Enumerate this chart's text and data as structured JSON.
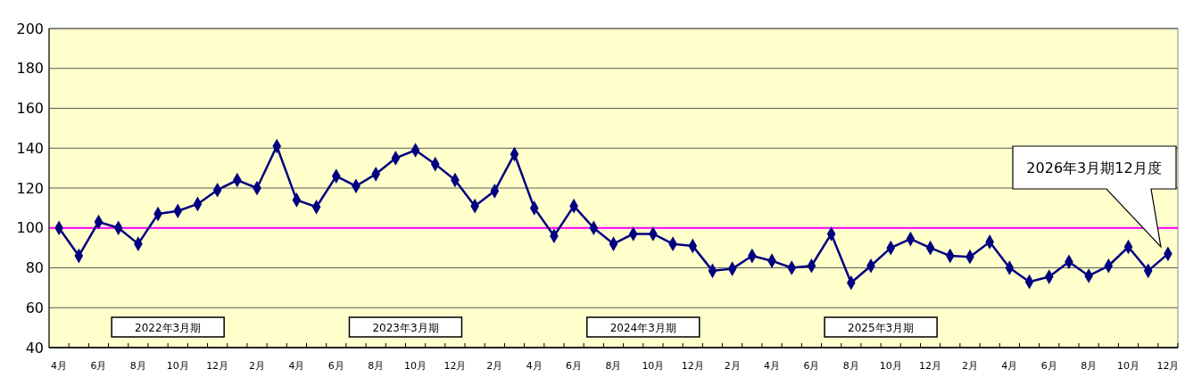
{
  "chart_data": {
    "type": "line",
    "categories": [
      "4月",
      null,
      "6月",
      null,
      "8月",
      null,
      "10月",
      null,
      "12月",
      null,
      "2月",
      null,
      "4月",
      null,
      "6月",
      null,
      "8月",
      null,
      "10月",
      null,
      "12月",
      null,
      "2月",
      null,
      "4月",
      null,
      "6月",
      null,
      "8月",
      null,
      "10月",
      null,
      "12月",
      null,
      "2月",
      null,
      "4月",
      null,
      "6月",
      null,
      "8月",
      null,
      "10月",
      null,
      "12月",
      null,
      "2月",
      null,
      "4月",
      null,
      "6月",
      null,
      "8月",
      null,
      "10月",
      null,
      "12月"
    ],
    "series": [
      {
        "color": "#000080",
        "values": [
          100,
          86,
          103,
          100,
          92,
          107,
          108.5,
          112,
          119,
          124,
          120,
          141,
          114,
          110.5,
          126,
          121,
          127,
          135,
          139,
          132,
          124,
          111,
          118.5,
          137,
          110,
          96,
          111,
          100,
          92,
          97,
          97,
          92,
          91,
          78.5,
          79.5,
          86,
          83.5,
          80,
          81,
          97,
          72.5,
          81,
          90,
          94.5,
          90,
          86,
          85.5,
          93,
          80,
          73,
          75.5,
          83,
          76,
          81,
          90.5,
          78.5,
          87
        ]
      }
    ],
    "ylim": [
      40,
      200
    ],
    "yticks": [
      40,
      60,
      80,
      100,
      120,
      140,
      160,
      180,
      200
    ],
    "grid": "y",
    "marker": "diamond",
    "line_style": "solid",
    "ref_lines": [
      {
        "axis": "y",
        "value": 100,
        "color": "#ff00ff"
      }
    ],
    "annotations": [
      "2022年3月期",
      "2023年3月期",
      "2024年3月期",
      "2025年3月期",
      "2026年3月期12月度"
    ]
  }
}
